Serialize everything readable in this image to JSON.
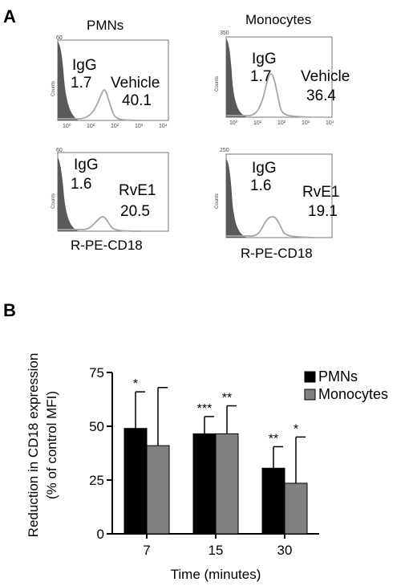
{
  "panels": {
    "a": {
      "letter": "A",
      "columns": [
        "PMNs",
        "Monocytes"
      ],
      "x_axis_title": "R-PE-CD18",
      "y_axis_label": "Counts",
      "x_ticks": [
        "10⁰",
        "10¹",
        "10²",
        "10³",
        "10⁴"
      ],
      "histograms": [
        {
          "ymax": "60",
          "isotype_label": "IgG",
          "isotype_value": "1.7",
          "treatment_label": "Vehicle",
          "treatment_value": "40.1"
        },
        {
          "ymax": "350",
          "isotype_label": "IgG",
          "isotype_value": "1.7",
          "treatment_label": "Vehicle",
          "treatment_value": "36.4"
        },
        {
          "ymax": "60",
          "isotype_label": "IgG",
          "isotype_value": "1.6",
          "treatment_label": "RvE1",
          "treatment_value": "20.5"
        },
        {
          "ymax": "250",
          "isotype_label": "IgG",
          "isotype_value": "1.6",
          "treatment_label": "RvE1",
          "treatment_value": "19.1"
        }
      ]
    },
    "b": {
      "letter": "B"
    }
  },
  "colors": {
    "pmn": "#000000",
    "monocyte": "#808080",
    "isotype_fill": "#595959",
    "histogram_line": "#a6a6a6"
  },
  "chart_data": {
    "type": "bar",
    "categories": [
      "7",
      "15",
      "30"
    ],
    "series": [
      {
        "name": "PMNs",
        "values": [
          49,
          46.5,
          30.5
        ],
        "errors": [
          17,
          8,
          10
        ],
        "significance": [
          "*",
          "***",
          "**"
        ]
      },
      {
        "name": "Monocytes",
        "values": [
          41,
          46.5,
          23.5
        ],
        "errors": [
          27,
          13,
          21.5
        ],
        "significance": [
          "",
          "**",
          "*"
        ]
      }
    ],
    "xlabel": "Time (minutes)",
    "ylabel_line1": "Reduction in CD18  expression",
    "ylabel_line2": "(% of control MFI)",
    "ylim": [
      0,
      75
    ],
    "yticks": [
      0,
      25,
      50,
      75
    ],
    "legend_position": "top-right"
  }
}
